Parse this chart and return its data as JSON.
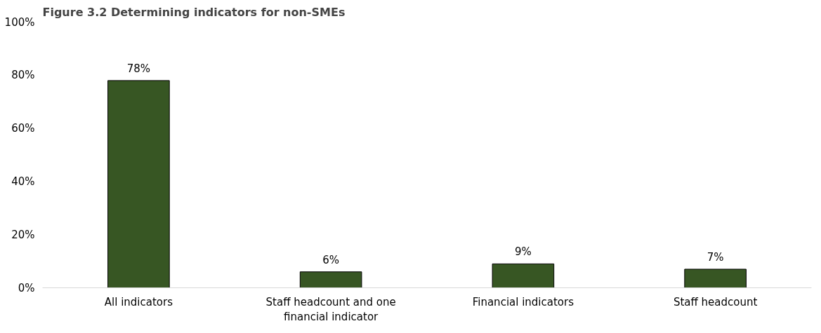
{
  "chart_data": {
    "type": "bar",
    "title": "Figure 3.2 Determining indicators for non-SMEs",
    "categories": [
      "All indicators",
      "Staff headcount and one financial indicator",
      "Financial indicators",
      "Staff headcount"
    ],
    "values": [
      78,
      6,
      9,
      7
    ],
    "color": "#375623",
    "value_labels": [
      "78%",
      "6%",
      "9%",
      "7%"
    ],
    "ylim": [
      0,
      100
    ],
    "yticks": [
      {
        "value": 0,
        "label": "0%"
      },
      {
        "value": 20,
        "label": "20%"
      },
      {
        "value": 40,
        "label": "40%"
      },
      {
        "value": 60,
        "label": "60%"
      },
      {
        "value": 80,
        "label": "80%"
      },
      {
        "value": 100,
        "label": "100%"
      }
    ],
    "grid": false
  }
}
